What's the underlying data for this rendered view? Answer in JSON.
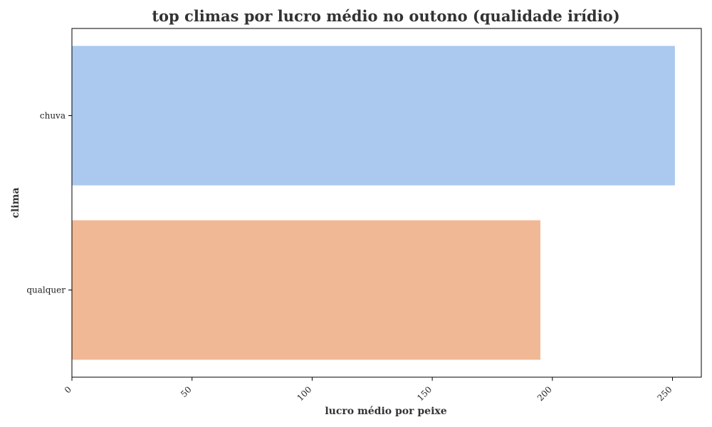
{
  "chart_data": {
    "type": "bar",
    "orientation": "horizontal",
    "title": "top climas por lucro médio no outono (qualidade irídio)",
    "xlabel": "lucro médio por peixe",
    "ylabel": "clima",
    "categories": [
      "chuva",
      "qualquer"
    ],
    "values": [
      251,
      195
    ],
    "colors": [
      "#abc9ee",
      "#f0b894"
    ],
    "xlim": [
      0,
      262
    ],
    "xticks": [
      0,
      50,
      100,
      150,
      200,
      250
    ],
    "xtick_labels": [
      "0",
      "50",
      "100",
      "150",
      "200",
      "250"
    ],
    "grid": false
  }
}
